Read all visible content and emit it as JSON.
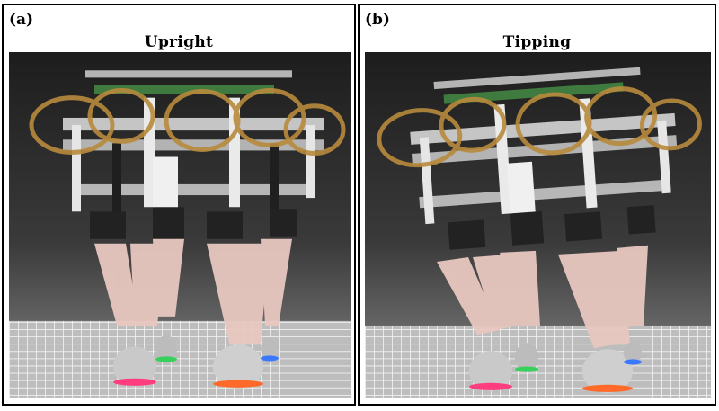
{
  "panels": [
    {
      "letter": "(a)",
      "title": "Upright"
    },
    {
      "letter": "(b)",
      "title": "Tipping"
    }
  ],
  "colors": {
    "background": "#2f2f2f",
    "ribbon": "#b88a3c",
    "frame": "#dcdcdc",
    "board": "#3f7a3f",
    "leg": "#e8c8c0",
    "foot_led_pink": "#ff3d7f",
    "foot_led_green": "#38d05a",
    "foot_led_orange": "#ff6a2a",
    "foot_led_blue": "#3a78ff",
    "grid": "#e6e6e6"
  }
}
